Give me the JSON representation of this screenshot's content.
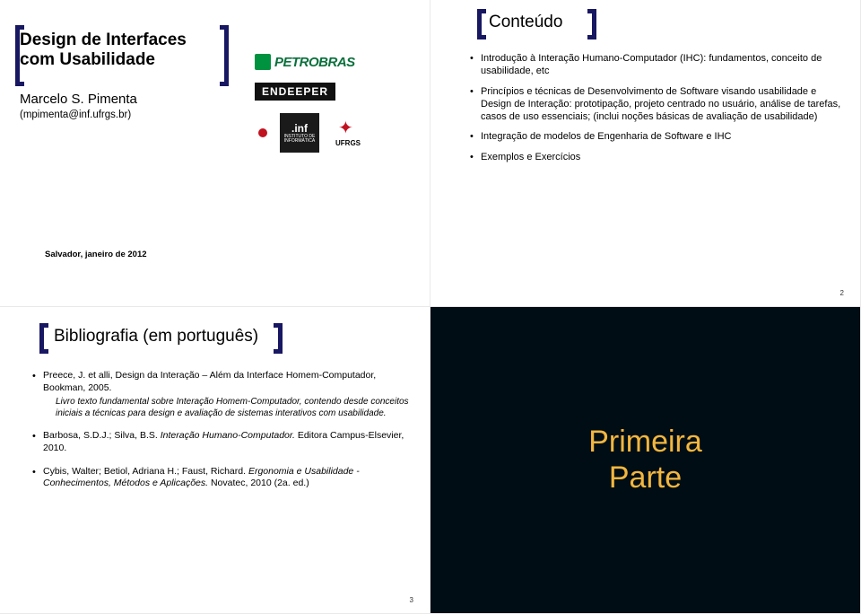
{
  "colors": {
    "bracket": "#181762",
    "slide4_bg": "#000d15",
    "slide4_text": "#f3b63e",
    "petrobras_green": "#00923f",
    "ufrgs_red": "#c1121f"
  },
  "slide1": {
    "title": "Design de Interfaces com Usabilidade",
    "author": "Marcelo S. Pimenta",
    "email": "(mpimenta@inf.ufrgs.br)",
    "logo_petrobras": "PETROBRAS",
    "logo_endeeper": "ENDEEPER",
    "logo_inf_top": ".inf",
    "logo_inf_sub": "INSTITUTO DE INFORMÁTICA",
    "logo_ufrgs": "UFRGS",
    "footer": "Salvador, janeiro de 2012"
  },
  "slide2": {
    "title": "Conteúdo",
    "bullets": [
      "Introdução à Interação Humano-Computador (IHC): fundamentos, conceito de usabilidade, etc",
      "Princípios e técnicas de Desenvolvimento de Software visando usabilidade e Design de Interação: prototipação, projeto centrado no usuário, análise de tarefas, casos de uso essenciais; (inclui noções básicas de avaliação de usabilidade)",
      "Integração de modelos de Engenharia de Software e IHC",
      "Exemplos e Exercícios"
    ],
    "pagenum": "2"
  },
  "slide3": {
    "title": "Bibliografia (em português)",
    "item1_main": "Preece, J. et alli, Design da Interação – Além da Interface Homem-Computador, Bookman, 2005.",
    "item1_sub": "Livro texto fundamental sobre Interação Homem-Computador, contendo desde conceitos iniciais a técnicas para design e avaliação de sistemas interativos com usabilidade.",
    "item2_pre": "Barbosa, S.D.J.; Silva, B.S. ",
    "item2_it": "Interação Humano-Computador.",
    "item2_post": " Editora Campus-Elsevier, 2010.",
    "item3_pre": "Cybis, Walter; Betiol, Adriana H.; Faust, Richard. ",
    "item3_it": "Ergonomia e Usabilidade - Conhecimentos, Métodos e Aplicações.",
    "item3_post": " Novatec, 2010 (2a. ed.)",
    "pagenum": "3"
  },
  "slide4": {
    "line1": "Primeira",
    "line2": "Parte"
  }
}
